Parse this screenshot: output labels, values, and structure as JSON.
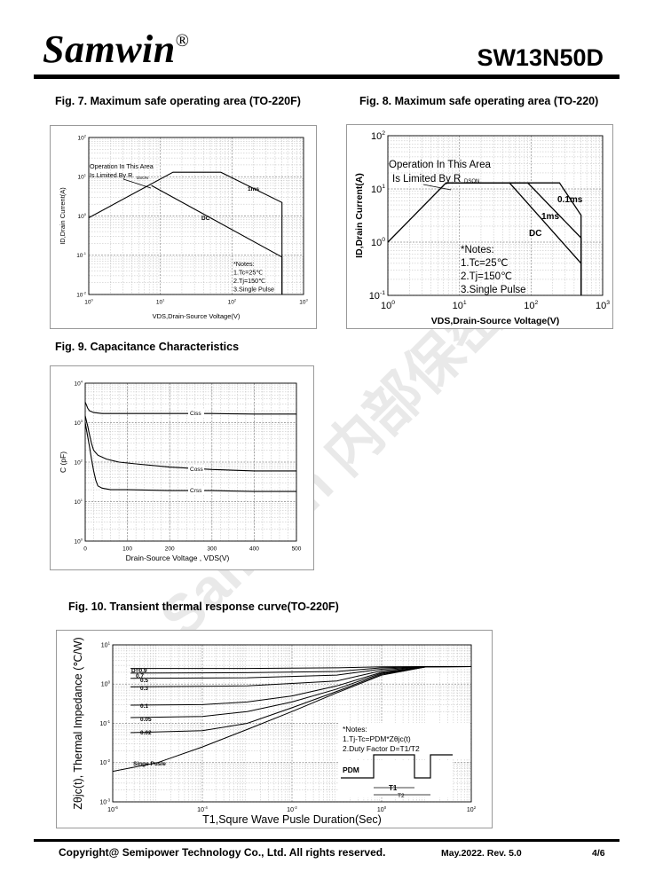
{
  "header": {
    "brand": "Samwin",
    "brand_mark": "®",
    "part_number": "SW13N50D"
  },
  "figures": {
    "fig7": {
      "caption": "Fig. 7. Maximum safe operating area (TO-220F)"
    },
    "fig8": {
      "caption": "Fig. 8. Maximum safe operating area (TO-220)"
    },
    "fig9": {
      "caption": "Fig. 9. Capacitance Characteristics"
    },
    "fig10": {
      "caption": "Fig. 10. Transient thermal response curve(TO-220F)"
    }
  },
  "footer": {
    "copyright": "Copyright@ Semipower Technology Co., Ltd. All rights reserved.",
    "revision": "May.2022. Rev. 5.0",
    "page": "4/6"
  },
  "watermark": {
    "text": "Samwin 内部保密"
  },
  "chart_data": [
    {
      "id": "fig7",
      "type": "line",
      "scale": "log-log",
      "xlabel": "VDS,Drain-Source Voltage(V)",
      "ylabel": "ID,Drain Current(A)",
      "xlim": [
        1,
        1000
      ],
      "ylim": [
        0.01,
        100
      ],
      "xticks": [
        "10^0",
        "10^1",
        "10^2",
        "10^3"
      ],
      "yticks": [
        "10^-2",
        "10^-1",
        "10^0",
        "10^1",
        "10^2"
      ],
      "annotations": [
        "Operation In This Area",
        "Is Limited By R",
        "DSON",
        "*Notes:",
        "1.Tc=25℃",
        "2.Tj=150℃",
        "3.Single Pulse"
      ],
      "series": [
        {
          "name": "1ms",
          "x": [
            1,
            15,
            70,
            500,
            500
          ],
          "y": [
            0.9,
            13,
            13,
            2.2,
            0.01
          ]
        },
        {
          "name": "DC",
          "x": [
            7.5,
            500,
            500
          ],
          "y": [
            6,
            0.09,
            0.01
          ]
        }
      ]
    },
    {
      "id": "fig8",
      "type": "line",
      "scale": "log-log",
      "xlabel": "VDS,Drain-Source Voltage(V)",
      "ylabel": "ID,Drain Current(A)",
      "xlim": [
        1,
        1000
      ],
      "ylim": [
        0.1,
        100
      ],
      "xticks": [
        "10^0",
        "10^1",
        "10^2",
        "10^3"
      ],
      "yticks": [
        "10^-1",
        "10^0",
        "10^1",
        "10^2"
      ],
      "annotations": [
        "Operation In This Area",
        "Is Limited By R",
        "DSON",
        "*Notes:",
        "1.Tc=25℃",
        "2.Tj=150℃",
        "3.Single Pulse"
      ],
      "series": [
        {
          "name": "0.1ms",
          "x": [
            1,
            6.5,
            250,
            500,
            500
          ],
          "y": [
            1,
            13,
            13,
            3.2,
            0.1
          ]
        },
        {
          "name": "1ms",
          "x": [
            6.5,
            90,
            500,
            500
          ],
          "y": [
            13,
            13,
            1.2,
            0.1
          ]
        },
        {
          "name": "DC",
          "x": [
            6.5,
            50,
            500,
            500
          ],
          "y": [
            13,
            13,
            0.4,
            0.1
          ]
        }
      ]
    },
    {
      "id": "fig9",
      "type": "line",
      "scale": "linear-log",
      "xlabel": "Drain-Source Voltage , VDS(V)",
      "ylabel": "C (pF)",
      "xlim": [
        0,
        500
      ],
      "ylim": [
        1,
        10000
      ],
      "xticks": [
        "0",
        "100",
        "200",
        "300",
        "400",
        "500"
      ],
      "yticks": [
        "10^0",
        "10^1",
        "10^2",
        "10^3",
        "10^4"
      ],
      "series": [
        {
          "name": "Ciss",
          "x": [
            0,
            3,
            6,
            10,
            20,
            40,
            100,
            200,
            300,
            400,
            500
          ],
          "y": [
            3300,
            2800,
            2300,
            2000,
            1800,
            1700,
            1700,
            1700,
            1700,
            1650,
            1650
          ]
        },
        {
          "name": "Coss",
          "x": [
            0,
            3,
            6,
            10,
            15,
            20,
            30,
            50,
            80,
            120,
            200,
            300,
            400,
            500
          ],
          "y": [
            1500,
            1100,
            800,
            500,
            300,
            200,
            150,
            120,
            100,
            90,
            75,
            65,
            60,
            60
          ]
        },
        {
          "name": "Crss",
          "x": [
            0,
            5,
            10,
            15,
            20,
            25,
            30,
            40,
            60,
            100,
            200,
            300,
            400,
            500
          ],
          "y": [
            1000,
            500,
            250,
            120,
            60,
            35,
            25,
            22,
            20,
            20,
            19,
            19,
            18,
            18
          ]
        }
      ]
    },
    {
      "id": "fig10",
      "type": "line",
      "scale": "log-log",
      "xlabel": "T1,Squre Wave Pusle Duration(Sec)",
      "ylabel": "Zθjc(t), Thermal Impedance (℃/W)",
      "xlim": [
        1e-06,
        100
      ],
      "ylim": [
        0.001,
        10
      ],
      "xticks": [
        "10^-6",
        "10^-4",
        "10^-2",
        "10^0",
        "10^2"
      ],
      "yticks": [
        "10^-3",
        "10^-2",
        "10^-1",
        "10^0",
        "10^1"
      ],
      "annotations": [
        "*Notes:",
        "1.Tj-Tc=PDM*Zθjc(t)",
        "2.Duty Factor D=T1/T2",
        "PDM",
        "T1",
        "T2"
      ],
      "series": [
        {
          "name": "D=0.9",
          "x": [
            2.5e-06,
            0.001,
            0.1,
            1,
            10,
            100
          ],
          "y": [
            2.5,
            2.5,
            2.6,
            2.75,
            2.8,
            2.8
          ]
        },
        {
          "name": "0.7",
          "x": [
            2.5e-06,
            0.001,
            0.1,
            1,
            10,
            100
          ],
          "y": [
            1.9,
            1.95,
            2.1,
            2.6,
            2.8,
            2.8
          ]
        },
        {
          "name": "0.5",
          "x": [
            2.5e-06,
            0.001,
            0.1,
            1,
            10,
            100
          ],
          "y": [
            1.4,
            1.45,
            1.7,
            2.4,
            2.8,
            2.8
          ]
        },
        {
          "name": "0.3",
          "x": [
            2.5e-06,
            0.001,
            0.1,
            1,
            10,
            100
          ],
          "y": [
            0.85,
            0.9,
            1.2,
            2.2,
            2.8,
            2.8
          ]
        },
        {
          "name": "0.1",
          "x": [
            2.5e-06,
            0.0001,
            0.001,
            0.01,
            0.1,
            1,
            10,
            100
          ],
          "y": [
            0.29,
            0.3,
            0.35,
            0.5,
            0.9,
            2.0,
            2.75,
            2.8
          ]
        },
        {
          "name": "0.05",
          "x": [
            2.5e-06,
            0.0001,
            0.001,
            0.01,
            0.1,
            1,
            10,
            100
          ],
          "y": [
            0.14,
            0.15,
            0.2,
            0.35,
            0.75,
            1.9,
            2.75,
            2.8
          ]
        },
        {
          "name": "0.02",
          "x": [
            2.5e-06,
            0.0001,
            0.001,
            0.01,
            0.1,
            1,
            10,
            100
          ],
          "y": [
            0.058,
            0.065,
            0.1,
            0.25,
            0.65,
            1.8,
            2.75,
            2.8
          ]
        },
        {
          "name": "Singe Pusle",
          "x": [
            1e-06,
            1e-05,
            0.0001,
            0.001,
            0.01,
            0.1,
            1,
            10,
            100
          ],
          "y": [
            0.006,
            0.01,
            0.025,
            0.07,
            0.2,
            0.6,
            1.7,
            2.75,
            2.8
          ]
        }
      ]
    }
  ]
}
